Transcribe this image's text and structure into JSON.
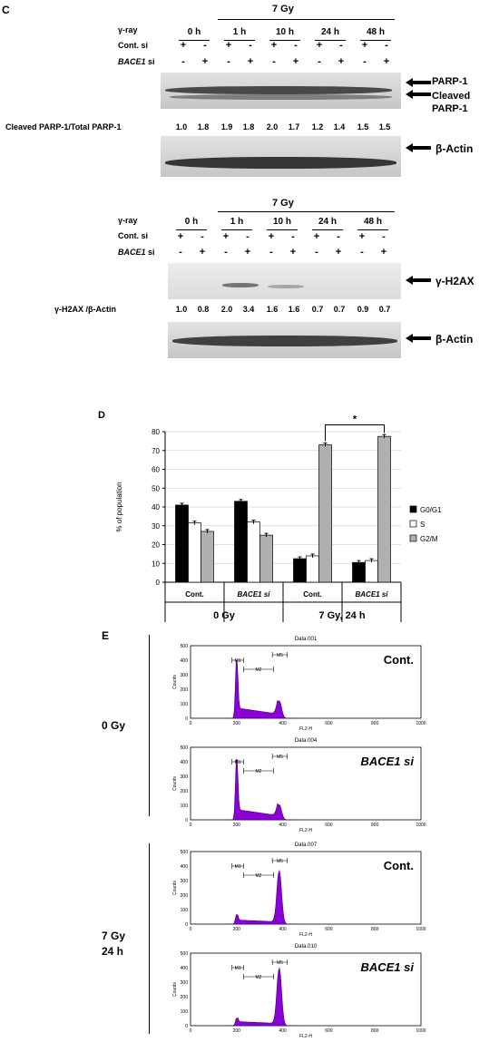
{
  "panelC": {
    "letter": "C",
    "dose": "7 Gy",
    "row_labels": [
      "γ-ray",
      "Cont. si",
      "si"
    ],
    "bace1_italic": "BACE1",
    "timepoints": [
      "0 h",
      "1 h",
      "10 h",
      "24 h",
      "48 h"
    ],
    "cont_signs": [
      "+",
      "-",
      "+",
      "-",
      "+",
      "-",
      "+",
      "-",
      "+",
      "-"
    ],
    "bace_signs": [
      "-",
      "+",
      "-",
      "+",
      "-",
      "+",
      "-",
      "+",
      "-",
      "+"
    ],
    "parp_label": "PARP-1",
    "cleaved_label_1": "Cleaved",
    "cleaved_label_2": "PARP-1",
    "ratio_label": "Cleaved PARP-1/Total PARP-1",
    "ratios": [
      "1.0",
      "1.8",
      "1.9",
      "1.8",
      "2.0",
      "1.7",
      "1.2",
      "1.4",
      "1.5",
      "1.5"
    ],
    "actin_label": "β-Actin"
  },
  "panelC2": {
    "dose": "7 Gy",
    "row_labels": [
      "γ-ray",
      "Cont. si",
      "si"
    ],
    "bace1_italic": "BACE1",
    "timepoints": [
      "0 h",
      "1 h",
      "10 h",
      "24 h",
      "48 h"
    ],
    "cont_signs": [
      "+",
      "-",
      "+",
      "-",
      "+",
      "-",
      "+",
      "-",
      "+",
      "-"
    ],
    "bace_signs": [
      "-",
      "+",
      "-",
      "+",
      "-",
      "+",
      "-",
      "+",
      "-",
      "+"
    ],
    "h2ax_label": "γ-H2AX",
    "ratio_label": "γ-H2AX /β-Actin",
    "ratios": [
      "1.0",
      "0.8",
      "2.0",
      "3.4",
      "1.6",
      "1.6",
      "0.7",
      "0.7",
      "0.9",
      "0.7"
    ],
    "actin_label": "β-Actin"
  },
  "panelD": {
    "letter": "D",
    "significance": "*",
    "group_labels": [
      "Cont.",
      "BACE1 si",
      "Cont.",
      "BACE1 si"
    ],
    "condition_labels": [
      "0 Gy",
      "7 Gy, 24 h"
    ],
    "chart_data": {
      "type": "bar",
      "ylabel": "% of population",
      "ylim": [
        0,
        80
      ],
      "yticks": [
        0,
        10,
        20,
        30,
        40,
        50,
        60,
        70,
        80
      ],
      "categories": [
        "Cont.",
        "BACE1 si",
        "Cont.",
        "BACE1 si"
      ],
      "series": [
        {
          "name": "G0/G1",
          "values": [
            41,
            43,
            12.5,
            10.5
          ],
          "color": "#000000"
        },
        {
          "name": "S",
          "values": [
            31.5,
            32,
            14,
            11.5
          ],
          "color": "#ffffff"
        },
        {
          "name": "G2/M",
          "values": [
            27,
            25,
            73,
            77.5
          ],
          "color": "#b0b0b0"
        }
      ],
      "grid": true,
      "legend": "right"
    }
  },
  "panelE": {
    "letter": "E",
    "condition_labels": [
      "0 Gy",
      "7 Gy",
      "24 h"
    ],
    "histograms": [
      {
        "file": "Data.001",
        "label": "Cont.",
        "italic": false,
        "g1": 430,
        "g2": 120
      },
      {
        "file": "Data.004",
        "label": "BACE1 si",
        "italic": true,
        "g1": 450,
        "g2": 105
      },
      {
        "file": "Data.007",
        "label": "Cont.",
        "italic": false,
        "g1": 70,
        "g2": 370
      },
      {
        "file": "Data.010",
        "label": "BACE1 si",
        "italic": true,
        "g1": 55,
        "g2": 400
      }
    ],
    "xlabel": "FL2-H",
    "ylabel": "Counts",
    "xticks": [
      "0",
      "200",
      "400",
      "600",
      "800",
      "1000"
    ],
    "yticks": [
      "0",
      "100",
      "200",
      "300",
      "400",
      "500"
    ],
    "markers": [
      "M1",
      "M2",
      "M5"
    ]
  }
}
